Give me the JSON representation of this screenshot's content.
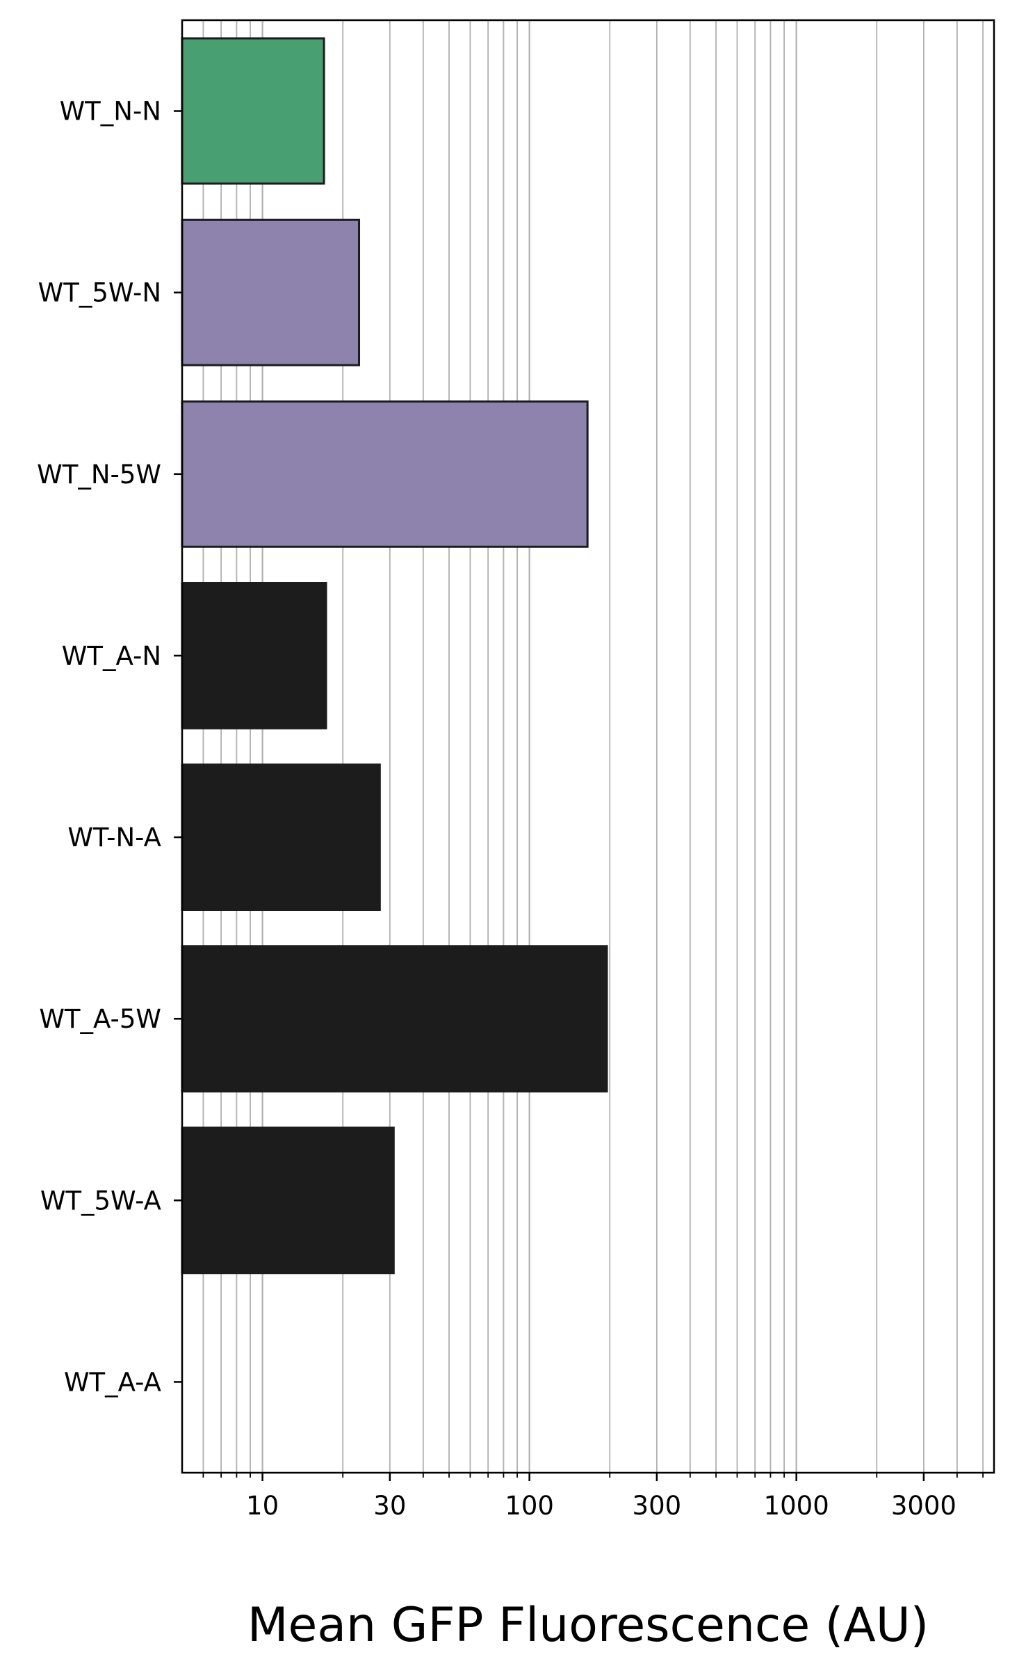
{
  "chart_data": {
    "type": "bar",
    "orientation": "horizontal",
    "x_scale": "log",
    "xlim": [
      5,
      5500
    ],
    "xlabel": "Mean GFP Fluorescence (AU)",
    "ylabel": "",
    "title": "",
    "grid": "x-major-and-minor",
    "legend": "none",
    "categories": [
      "WT_N-N",
      "WT_5W-N",
      "WT_N-5W",
      "WT_A-N",
      "WT-N-A",
      "WT_A-5W",
      "WT_5W-A",
      "WT_A-A"
    ],
    "values": [
      17,
      23,
      165,
      17.3,
      27.5,
      195,
      31,
      null
    ],
    "bar_colors": [
      "#479f72",
      "#8d83ad",
      "#8d83ad",
      "#1c1c1c",
      "#1c1c1c",
      "#1c1c1c",
      "#1c1c1c",
      "#1c1c1c"
    ],
    "bar_edge_color": "#1c1c1c",
    "x_tick_values": [
      10,
      30,
      100,
      300,
      1000,
      3000
    ],
    "x_tick_labels": [
      "10",
      "30",
      "100",
      "300",
      "1000",
      "3000"
    ],
    "grid_color": "#b0b0b0"
  }
}
